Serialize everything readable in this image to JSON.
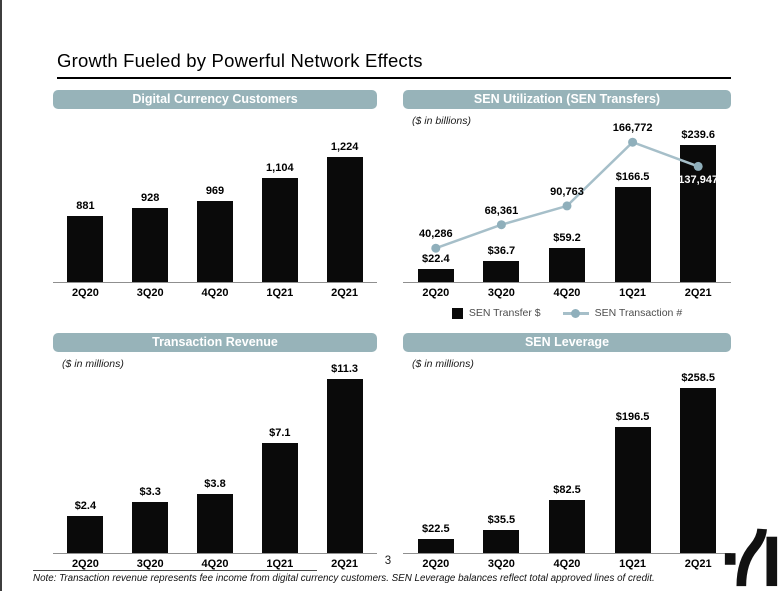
{
  "page": {
    "title": "Growth Fueled by Powerful Network Effects",
    "page_number": "3",
    "note": "Note: Transaction revenue represents fee income from digital currency customers. SEN Leverage balances reflect total approved lines of credit.",
    "logo": "silvergate-s-mark"
  },
  "colors": {
    "pill": "#97b3b9",
    "bar": "#0a0a0a",
    "line": "#a6bfc9",
    "marker": "#8fafbb",
    "axis": "#8f8f8f",
    "legend_text": "#4d4d4d",
    "left_edge": "#3d3d3d"
  },
  "chart_data": [
    {
      "id": "digital-currency-customers",
      "type": "bar",
      "title": "Digital Currency Customers",
      "subtitle": "",
      "categories": [
        "2Q20",
        "3Q20",
        "4Q20",
        "1Q21",
        "2Q21"
      ],
      "values": [
        881,
        928,
        969,
        1104,
        1224
      ],
      "labels": [
        "881",
        "928",
        "969",
        "1,104",
        "1,224"
      ],
      "ylim": [
        500,
        1370
      ],
      "grid": false,
      "legend": null
    },
    {
      "id": "sen-utilization",
      "type": "bar+line",
      "title": "SEN Utilization (SEN Transfers)",
      "subtitle": "($ in billions)",
      "categories": [
        "2Q20",
        "3Q20",
        "4Q20",
        "1Q21",
        "2Q21"
      ],
      "series": [
        {
          "name": "SEN Transfer $",
          "type": "bar",
          "values": [
            22.4,
            36.7,
            59.2,
            166.5,
            239.6
          ],
          "labels": [
            "$22.4",
            "$36.7",
            "$59.2",
            "$166.5",
            "$239.6"
          ],
          "ylim": [
            0,
            245
          ]
        },
        {
          "name": "SEN Transaction #",
          "type": "line",
          "values": [
            40286,
            68361,
            90763,
            166772,
            137947
          ],
          "labels": [
            "40,286",
            "68,361",
            "90,763",
            "166,772",
            "137,947"
          ],
          "label_position": [
            "above",
            "above",
            "above",
            "above",
            "below"
          ],
          "ylim": [
            0,
            167000
          ]
        }
      ],
      "legend": [
        "SEN Transfer $",
        "SEN Transaction #"
      ],
      "legend_position": "bottom",
      "grid": false
    },
    {
      "id": "transaction-revenue",
      "type": "bar",
      "title": "Transaction Revenue",
      "subtitle": "($ in millions)",
      "categories": [
        "2Q20",
        "3Q20",
        "4Q20",
        "1Q21",
        "2Q21"
      ],
      "values": [
        2.4,
        3.3,
        3.8,
        7.1,
        11.3
      ],
      "labels": [
        "$2.4",
        "$3.3",
        "$3.8",
        "$7.1",
        "$11.3"
      ],
      "ylim": [
        0,
        11.4
      ],
      "grid": false,
      "legend": null
    },
    {
      "id": "sen-leverage",
      "type": "bar",
      "title": "SEN Leverage",
      "subtitle": "($ in millions)",
      "categories": [
        "2Q20",
        "3Q20",
        "4Q20",
        "1Q21",
        "2Q21"
      ],
      "values": [
        22.5,
        35.5,
        82.5,
        196.5,
        258.5
      ],
      "labels": [
        "$22.5",
        "$35.5",
        "$82.5",
        "$196.5",
        "$258.5"
      ],
      "ylim": [
        0,
        275
      ],
      "grid": false,
      "legend": null
    }
  ]
}
